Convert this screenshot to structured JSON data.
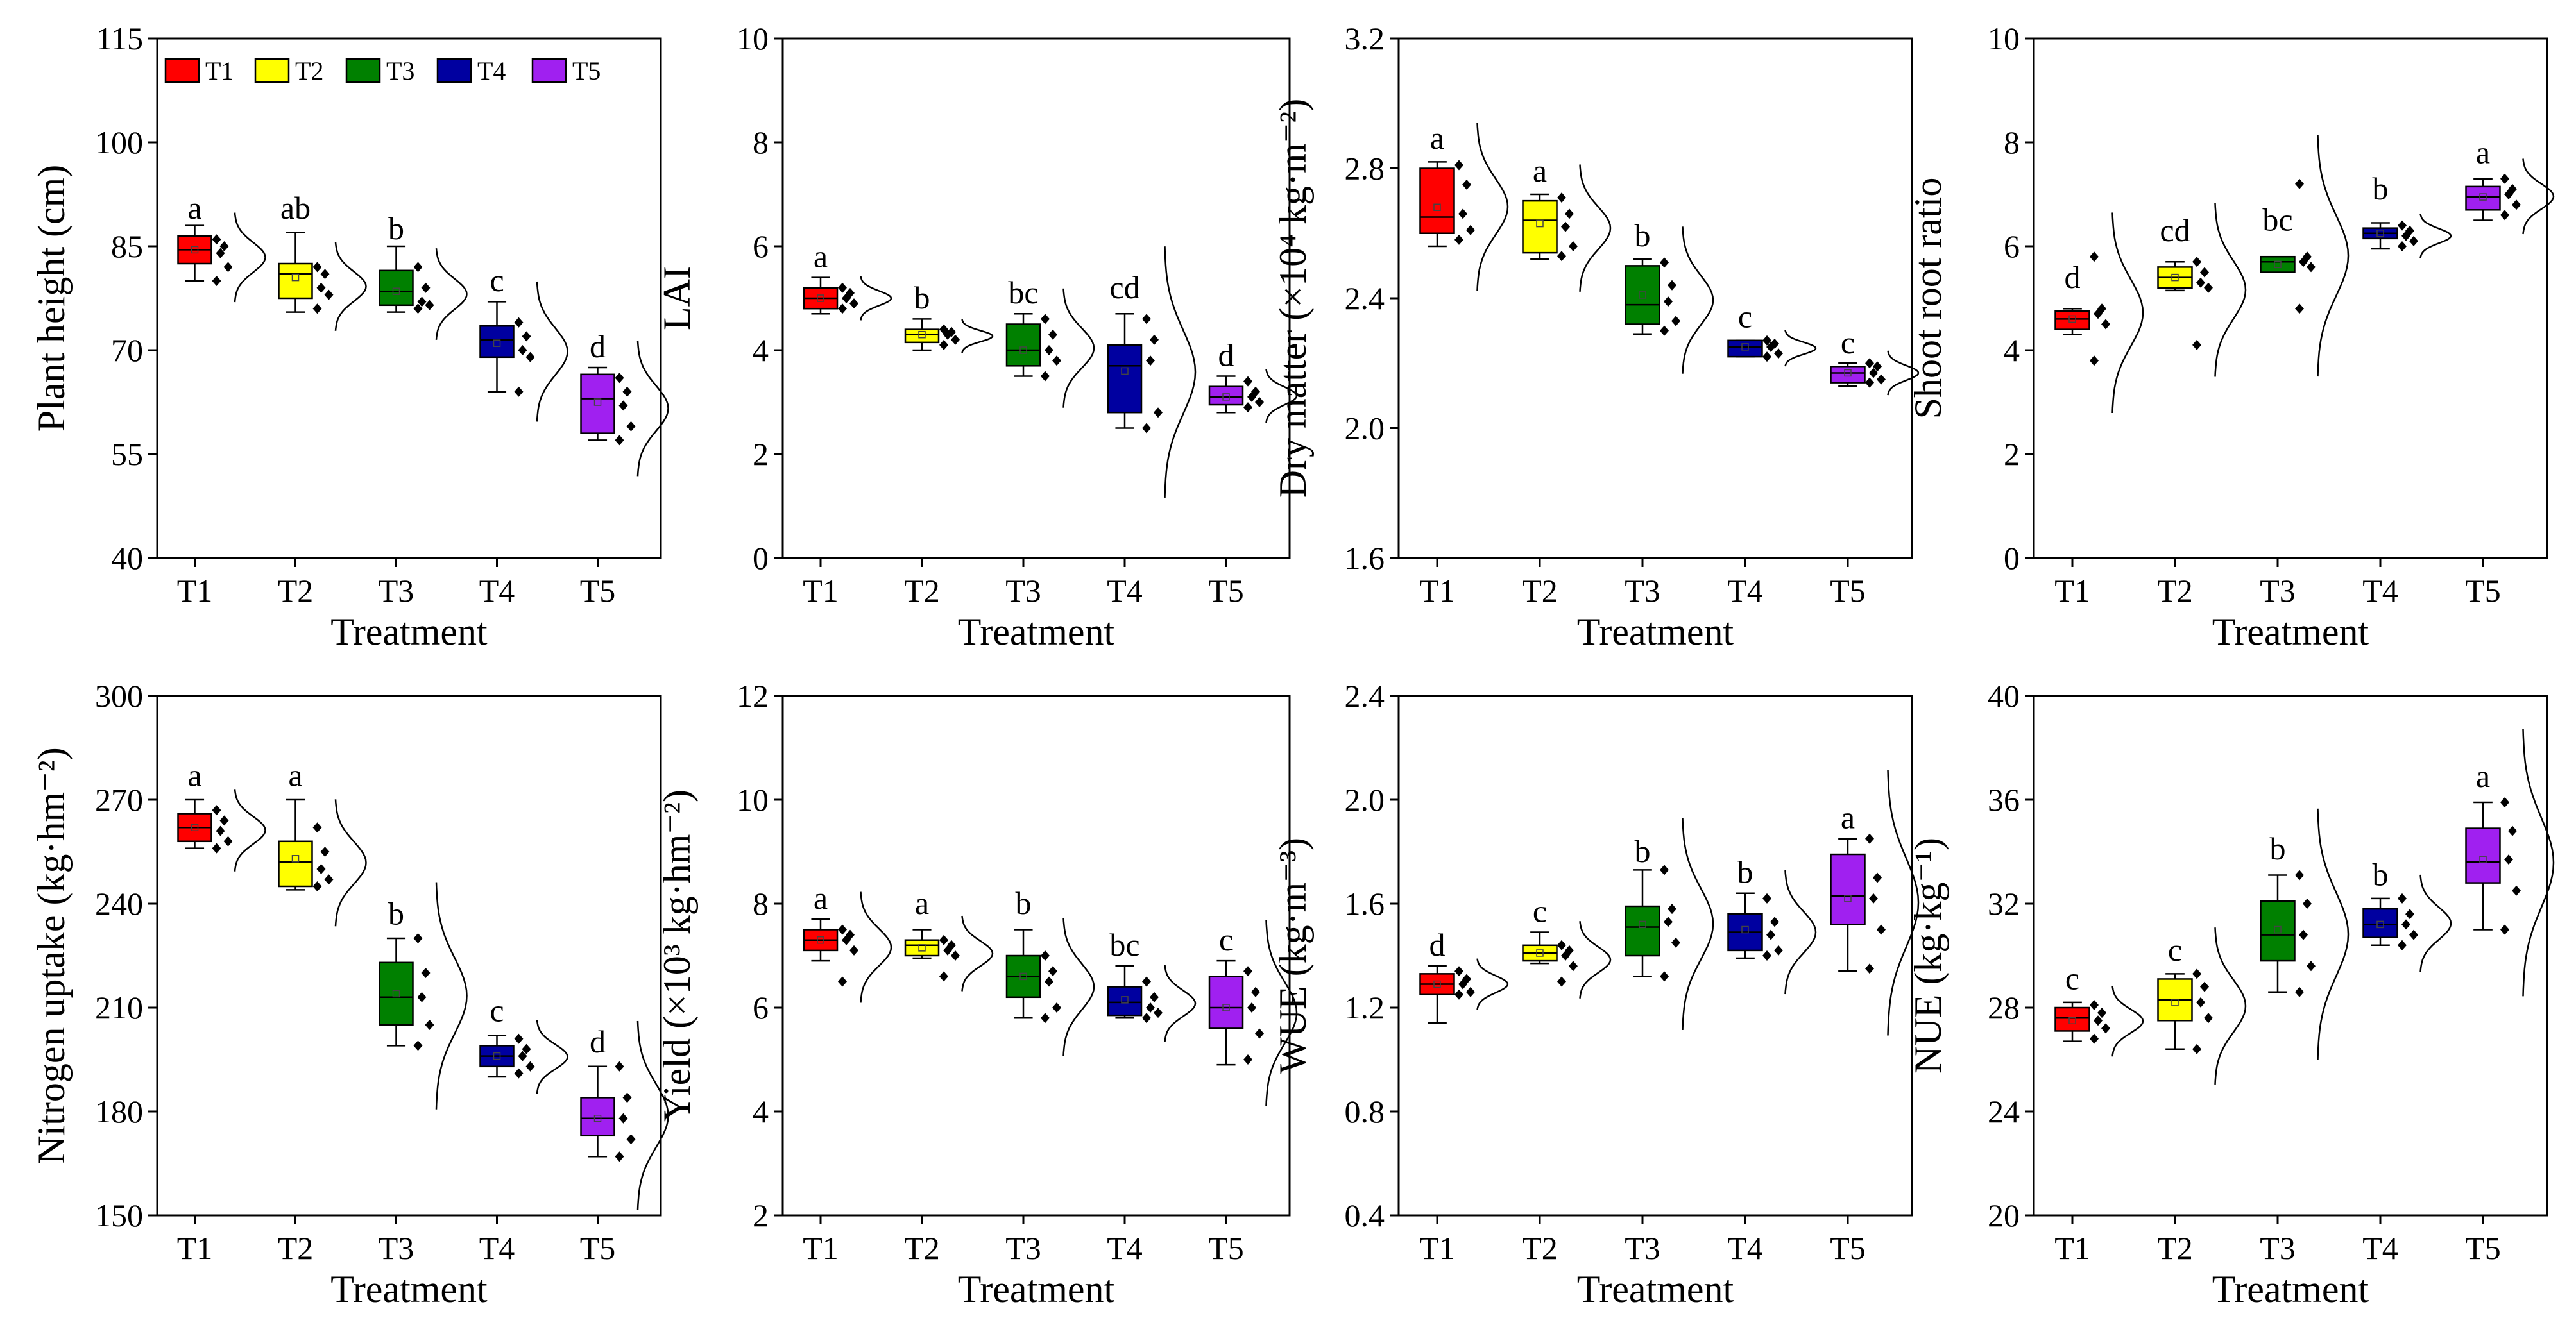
{
  "figure": {
    "legend": [
      {
        "label": "T1",
        "color": "#ff0000"
      },
      {
        "label": "T2",
        "color": "#ffff00"
      },
      {
        "label": "T3",
        "color": "#008000"
      },
      {
        "label": "T4",
        "color": "#0000a0"
      },
      {
        "label": "T5",
        "color": "#a020f0"
      }
    ]
  },
  "chart_data": [
    {
      "type": "box",
      "title": "",
      "xlabel": "Treatment",
      "ylabel": "Plant height (cm)",
      "ylim": [
        40,
        115
      ],
      "yticks": [
        40,
        55,
        70,
        85,
        100,
        115
      ],
      "categories": [
        "T1",
        "T2",
        "T3",
        "T4",
        "T5"
      ],
      "colors": [
        "#ff0000",
        "#ffff00",
        "#008000",
        "#0000a0",
        "#a020f0"
      ],
      "boxes": [
        {
          "q1": 82.5,
          "median": 84.5,
          "q3": 86.5,
          "mean": 84.5,
          "whisker_low": 80,
          "whisker_high": 88
        },
        {
          "q1": 77.5,
          "median": 81,
          "q3": 82.5,
          "mean": 80.5,
          "whisker_low": 75.5,
          "whisker_high": 87
        },
        {
          "q1": 76.5,
          "median": 78.5,
          "q3": 81.5,
          "mean": 78.5,
          "whisker_low": 75.5,
          "whisker_high": 85
        },
        {
          "q1": 69,
          "median": 71.5,
          "q3": 73.5,
          "mean": 71,
          "whisker_low": 64,
          "whisker_high": 77
        },
        {
          "q1": 58,
          "median": 63,
          "q3": 66.5,
          "mean": 62.5,
          "whisker_low": 57,
          "whisker_high": 67.5
        }
      ],
      "points": [
        [
          86,
          85,
          84,
          82,
          80
        ],
        [
          82,
          81,
          79,
          78,
          76
        ],
        [
          82,
          79,
          77,
          76.5,
          76
        ],
        [
          74,
          72,
          70,
          69,
          64
        ],
        [
          66,
          64,
          62,
          59,
          57
        ]
      ],
      "letters": [
        "a",
        "ab",
        "b",
        "c",
        "d"
      ],
      "letter_values": [
        89,
        89,
        86,
        78.5,
        69
      ]
    },
    {
      "type": "box",
      "title": "",
      "xlabel": "Treatment",
      "ylabel": "LAI",
      "ylim": [
        0,
        10
      ],
      "yticks": [
        0,
        2,
        4,
        6,
        8,
        10
      ],
      "categories": [
        "T1",
        "T2",
        "T3",
        "T4",
        "T5"
      ],
      "colors": [
        "#ff0000",
        "#ffff00",
        "#008000",
        "#0000a0",
        "#a020f0"
      ],
      "boxes": [
        {
          "q1": 4.8,
          "median": 5.0,
          "q3": 5.2,
          "mean": 5.0,
          "whisker_low": 4.7,
          "whisker_high": 5.4
        },
        {
          "q1": 4.15,
          "median": 4.3,
          "q3": 4.4,
          "mean": 4.3,
          "whisker_low": 4.0,
          "whisker_high": 4.6
        },
        {
          "q1": 3.7,
          "median": 4.0,
          "q3": 4.5,
          "mean": 4.0,
          "whisker_low": 3.5,
          "whisker_high": 4.7
        },
        {
          "q1": 2.8,
          "median": 3.7,
          "q3": 4.1,
          "mean": 3.6,
          "whisker_low": 2.5,
          "whisker_high": 4.7
        },
        {
          "q1": 2.95,
          "median": 3.1,
          "q3": 3.3,
          "mean": 3.1,
          "whisker_low": 2.8,
          "whisker_high": 3.5
        }
      ],
      "points": [
        [
          5.2,
          5.1,
          5.0,
          4.9,
          4.8
        ],
        [
          4.4,
          4.35,
          4.3,
          4.2,
          4.1
        ],
        [
          4.6,
          4.3,
          4.0,
          3.8,
          3.5
        ],
        [
          4.6,
          4.2,
          3.8,
          2.8,
          2.5
        ],
        [
          3.4,
          3.2,
          3.1,
          3.0,
          2.9
        ]
      ],
      "letters": [
        "a",
        "b",
        "bc",
        "cd",
        "d"
      ],
      "letter_values": [
        5.6,
        4.8,
        4.9,
        5.0,
        3.7
      ]
    },
    {
      "type": "box",
      "title": "",
      "xlabel": "Treatment",
      "ylabel": "Dry matter (×10⁴ kg·m⁻²)",
      "ylim": [
        1.6,
        3.2
      ],
      "yticks": [
        1.6,
        2.0,
        2.4,
        2.8,
        3.2
      ],
      "tick_decimals": 1,
      "categories": [
        "T1",
        "T2",
        "T3",
        "T4",
        "T5"
      ],
      "colors": [
        "#ff0000",
        "#ffff00",
        "#008000",
        "#0000a0",
        "#a020f0"
      ],
      "boxes": [
        {
          "q1": 2.6,
          "median": 2.65,
          "q3": 2.8,
          "mean": 2.68,
          "whisker_low": 2.56,
          "whisker_high": 2.82
        },
        {
          "q1": 2.54,
          "median": 2.64,
          "q3": 2.7,
          "mean": 2.63,
          "whisker_low": 2.52,
          "whisker_high": 2.72
        },
        {
          "q1": 2.32,
          "median": 2.38,
          "q3": 2.5,
          "mean": 2.41,
          "whisker_low": 2.29,
          "whisker_high": 2.52
        },
        {
          "q1": 2.22,
          "median": 2.25,
          "q3": 2.27,
          "mean": 2.25,
          "whisker_low": 2.22,
          "whisker_high": 2.27
        },
        {
          "q1": 2.14,
          "median": 2.17,
          "q3": 2.19,
          "mean": 2.17,
          "whisker_low": 2.13,
          "whisker_high": 2.2
        }
      ],
      "points": [
        [
          2.81,
          2.75,
          2.66,
          2.61,
          2.58
        ],
        [
          2.71,
          2.66,
          2.62,
          2.56,
          2.53
        ],
        [
          2.51,
          2.44,
          2.39,
          2.33,
          2.3
        ],
        [
          2.27,
          2.26,
          2.25,
          2.23,
          2.22
        ],
        [
          2.2,
          2.19,
          2.17,
          2.15,
          2.14
        ]
      ],
      "letters": [
        "a",
        "a",
        "b",
        "c",
        "c"
      ],
      "letter_values": [
        2.86,
        2.76,
        2.56,
        2.31,
        2.23
      ]
    },
    {
      "type": "box",
      "title": "",
      "xlabel": "Treatment",
      "ylabel": "Shoot root ratio",
      "ylim": [
        0,
        10
      ],
      "yticks": [
        0,
        2,
        4,
        6,
        8,
        10
      ],
      "categories": [
        "T1",
        "T2",
        "T3",
        "T4",
        "T5"
      ],
      "colors": [
        "#ff0000",
        "#ffff00",
        "#008000",
        "#0000a0",
        "#a020f0"
      ],
      "boxes": [
        {
          "q1": 4.4,
          "median": 4.6,
          "q3": 4.75,
          "mean": 4.6,
          "whisker_low": 4.3,
          "whisker_high": 4.8
        },
        {
          "q1": 5.2,
          "median": 5.4,
          "q3": 5.6,
          "mean": 5.4,
          "whisker_low": 5.15,
          "whisker_high": 5.7
        },
        {
          "q1": 5.5,
          "median": 5.7,
          "q3": 5.8,
          "mean": 5.65,
          "whisker_low": 5.5,
          "whisker_high": 5.8
        },
        {
          "q1": 6.15,
          "median": 6.25,
          "q3": 6.35,
          "mean": 6.25,
          "whisker_low": 5.95,
          "whisker_high": 6.45
        },
        {
          "q1": 6.7,
          "median": 6.95,
          "q3": 7.15,
          "mean": 6.95,
          "whisker_low": 6.5,
          "whisker_high": 7.3
        }
      ],
      "points": [
        [
          5.8,
          4.8,
          4.7,
          4.5,
          3.8
        ],
        [
          5.7,
          5.5,
          5.3,
          5.2,
          4.1
        ],
        [
          7.2,
          5.8,
          5.7,
          5.6,
          4.8
        ],
        [
          6.4,
          6.3,
          6.2,
          6.1,
          6.0
        ],
        [
          7.3,
          7.1,
          7.0,
          6.8,
          6.6
        ]
      ],
      "letters": [
        "d",
        "cd",
        "bc",
        "b",
        "a"
      ],
      "letter_values": [
        5.2,
        6.1,
        6.3,
        6.9,
        7.6
      ]
    },
    {
      "type": "box",
      "title": "",
      "xlabel": "Treatment",
      "ylabel": "Nitrogen uptake (kg·hm⁻²)",
      "ylim": [
        150,
        300
      ],
      "yticks": [
        150,
        180,
        210,
        240,
        270,
        300
      ],
      "categories": [
        "T1",
        "T2",
        "T3",
        "T4",
        "T5"
      ],
      "colors": [
        "#ff0000",
        "#ffff00",
        "#008000",
        "#0000a0",
        "#a020f0"
      ],
      "boxes": [
        {
          "q1": 258,
          "median": 262,
          "q3": 266,
          "mean": 262,
          "whisker_low": 256,
          "whisker_high": 270
        },
        {
          "q1": 245,
          "median": 252,
          "q3": 258,
          "mean": 253,
          "whisker_low": 244,
          "whisker_high": 270
        },
        {
          "q1": 205,
          "median": 213,
          "q3": 223,
          "mean": 214,
          "whisker_low": 199,
          "whisker_high": 230
        },
        {
          "q1": 193,
          "median": 196,
          "q3": 199,
          "mean": 196,
          "whisker_low": 190,
          "whisker_high": 202
        },
        {
          "q1": 173,
          "median": 178,
          "q3": 184,
          "mean": 178,
          "whisker_low": 167,
          "whisker_high": 193
        }
      ],
      "points": [
        [
          267,
          264,
          261,
          258,
          256
        ],
        [
          262,
          255,
          250,
          247,
          245
        ],
        [
          230,
          220,
          213,
          205,
          199
        ],
        [
          201,
          198,
          196,
          193,
          191
        ],
        [
          193,
          184,
          178,
          172,
          167
        ]
      ],
      "letters": [
        "a",
        "a",
        "b",
        "c",
        "d"
      ],
      "letter_values": [
        274,
        274,
        234,
        206,
        197
      ]
    },
    {
      "type": "box",
      "title": "",
      "xlabel": "Treatment",
      "ylabel": "Yield (×10³ kg·hm⁻²)",
      "ylim": [
        2,
        12
      ],
      "yticks": [
        2,
        4,
        6,
        8,
        10,
        12
      ],
      "categories": [
        "T1",
        "T2",
        "T3",
        "T4",
        "T5"
      ],
      "colors": [
        "#ff0000",
        "#ffff00",
        "#008000",
        "#0000a0",
        "#a020f0"
      ],
      "boxes": [
        {
          "q1": 7.1,
          "median": 7.3,
          "q3": 7.5,
          "mean": 7.3,
          "whisker_low": 6.9,
          "whisker_high": 7.7
        },
        {
          "q1": 7.0,
          "median": 7.2,
          "q3": 7.3,
          "mean": 7.15,
          "whisker_low": 6.95,
          "whisker_high": 7.5
        },
        {
          "q1": 6.2,
          "median": 6.6,
          "q3": 7.0,
          "mean": 6.6,
          "whisker_low": 5.8,
          "whisker_high": 7.5
        },
        {
          "q1": 5.85,
          "median": 6.1,
          "q3": 6.4,
          "mean": 6.15,
          "whisker_low": 5.8,
          "whisker_high": 6.8
        },
        {
          "q1": 5.6,
          "median": 6.0,
          "q3": 6.6,
          "mean": 6.0,
          "whisker_low": 4.9,
          "whisker_high": 6.9
        }
      ],
      "points": [
        [
          7.5,
          7.4,
          7.3,
          7.1,
          6.5
        ],
        [
          7.3,
          7.2,
          7.1,
          7.0,
          6.6
        ],
        [
          7.0,
          6.7,
          6.5,
          6.0,
          5.8
        ],
        [
          6.5,
          6.2,
          6.0,
          5.9,
          5.8
        ],
        [
          6.7,
          6.3,
          6.0,
          5.5,
          5.0
        ]
      ],
      "letters": [
        "a",
        "a",
        "b",
        "bc",
        "c"
      ],
      "letter_values": [
        7.9,
        7.8,
        7.8,
        7.0,
        7.1
      ]
    },
    {
      "type": "box",
      "title": "",
      "xlabel": "Treatment",
      "ylabel": "WUE (kg·m⁻³)",
      "ylim": [
        0.4,
        2.4
      ],
      "yticks": [
        0.4,
        0.8,
        1.2,
        1.6,
        2.0,
        2.4
      ],
      "tick_decimals": 1,
      "categories": [
        "T1",
        "T2",
        "T3",
        "T4",
        "T5"
      ],
      "colors": [
        "#ff0000",
        "#ffff00",
        "#008000",
        "#0000a0",
        "#a020f0"
      ],
      "boxes": [
        {
          "q1": 1.25,
          "median": 1.29,
          "q3": 1.33,
          "mean": 1.29,
          "whisker_low": 1.14,
          "whisker_high": 1.36
        },
        {
          "q1": 1.38,
          "median": 1.41,
          "q3": 1.44,
          "mean": 1.41,
          "whisker_low": 1.37,
          "whisker_high": 1.49
        },
        {
          "q1": 1.4,
          "median": 1.51,
          "q3": 1.59,
          "mean": 1.52,
          "whisker_low": 1.32,
          "whisker_high": 1.73
        },
        {
          "q1": 1.42,
          "median": 1.49,
          "q3": 1.56,
          "mean": 1.5,
          "whisker_low": 1.39,
          "whisker_high": 1.64
        },
        {
          "q1": 1.52,
          "median": 1.63,
          "q3": 1.79,
          "mean": 1.62,
          "whisker_low": 1.34,
          "whisker_high": 1.85
        }
      ],
      "points": [
        [
          1.34,
          1.31,
          1.29,
          1.26,
          1.25
        ],
        [
          1.44,
          1.42,
          1.4,
          1.36,
          1.3
        ],
        [
          1.73,
          1.58,
          1.53,
          1.45,
          1.32
        ],
        [
          1.62,
          1.53,
          1.48,
          1.42,
          1.4
        ],
        [
          1.85,
          1.7,
          1.62,
          1.5,
          1.35
        ]
      ],
      "letters": [
        "d",
        "c",
        "b",
        "b",
        "a"
      ],
      "letter_values": [
        1.4,
        1.53,
        1.76,
        1.68,
        1.89
      ]
    },
    {
      "type": "box",
      "title": "",
      "xlabel": "Treatment",
      "ylabel": "NUE (kg·kg⁻¹)",
      "ylim": [
        20,
        40
      ],
      "yticks": [
        20,
        24,
        28,
        32,
        36,
        40
      ],
      "categories": [
        "T1",
        "T2",
        "T3",
        "T4",
        "T5"
      ],
      "colors": [
        "#ff0000",
        "#ffff00",
        "#008000",
        "#0000a0",
        "#a020f0"
      ],
      "boxes": [
        {
          "q1": 27.1,
          "median": 27.6,
          "q3": 28.0,
          "mean": 27.5,
          "whisker_low": 26.7,
          "whisker_high": 28.2
        },
        {
          "q1": 27.5,
          "median": 28.3,
          "q3": 29.1,
          "mean": 28.2,
          "whisker_low": 26.4,
          "whisker_high": 29.3
        },
        {
          "q1": 29.8,
          "median": 30.8,
          "q3": 32.1,
          "mean": 31.0,
          "whisker_low": 28.6,
          "whisker_high": 33.1
        },
        {
          "q1": 30.7,
          "median": 31.2,
          "q3": 31.8,
          "mean": 31.2,
          "whisker_low": 30.4,
          "whisker_high": 32.2
        },
        {
          "q1": 32.8,
          "median": 33.6,
          "q3": 34.9,
          "mean": 33.7,
          "whisker_low": 31.0,
          "whisker_high": 35.9
        }
      ],
      "points": [
        [
          28.1,
          27.8,
          27.5,
          27.2,
          26.8
        ],
        [
          29.3,
          28.8,
          28.2,
          27.6,
          26.4
        ],
        [
          33.1,
          32.0,
          30.8,
          29.6,
          28.6
        ],
        [
          32.2,
          31.6,
          31.2,
          30.8,
          30.4
        ],
        [
          35.9,
          34.8,
          33.7,
          32.5,
          31.0
        ]
      ],
      "letters": [
        "c",
        "c",
        "b",
        "b",
        "a"
      ],
      "letter_values": [
        28.7,
        29.8,
        33.7,
        32.7,
        36.5
      ]
    }
  ]
}
